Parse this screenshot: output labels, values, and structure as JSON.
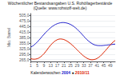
{
  "chart_data": {
    "type": "line",
    "title": "Wöchentlicher Bestandsangaben U.S. Rohöllagerbestände",
    "subtitle": "(Quelle: www.rohstoff-welt.de)",
    "xlabel": "Kalenderwochen",
    "ylabel": "Mio. Barrel",
    "annotations": [
      "●"
    ],
    "legend": "bottom",
    "grid": true,
    "x": [
      1,
      2,
      3,
      4,
      5,
      6,
      7,
      8,
      9,
      10,
      11,
      12,
      13,
      14,
      15,
      16,
      17,
      18,
      19,
      20,
      21,
      22,
      23,
      24,
      25,
      26,
      27,
      28,
      29,
      30,
      31,
      32,
      33,
      34,
      35,
      36,
      37,
      38,
      39,
      40,
      41,
      42,
      43,
      44,
      45,
      46,
      47,
      48,
      49,
      50,
      51,
      52
    ],
    "xlim": [
      1,
      52
    ],
    "xticks": [
      1,
      5,
      9,
      13,
      17,
      21,
      25,
      29,
      33,
      37,
      41,
      45,
      49
    ],
    "ylim": [
      255.0,
      515.0
    ],
    "yticks": [
      {
        "value": 265.0,
        "label": "265,0"
      },
      {
        "value": 295.0,
        "label": "295,0"
      },
      {
        "value": 325.0,
        "label": "325,0"
      },
      {
        "value": 355.0,
        "label": "355,0"
      },
      {
        "value": 385.0,
        "label": "385,0"
      },
      {
        "value": 415.0,
        "label": "415,0"
      },
      {
        "value": 445.0,
        "label": "445,0"
      },
      {
        "value": 475.0,
        "label": "475,0"
      },
      {
        "value": 505.0,
        "label": "505,0"
      }
    ],
    "series": [
      {
        "name": "2004",
        "color": "#2222cc",
        "values": [
          333,
          338,
          344,
          352,
          361,
          371,
          381,
          392,
          402,
          412,
          421,
          430,
          438,
          445,
          451,
          456,
          460,
          463,
          465,
          466,
          466,
          465,
          463,
          460,
          456,
          451,
          445,
          438,
          430,
          421,
          412,
          402,
          392,
          382,
          373,
          365,
          358,
          352,
          347,
          344,
          342,
          341,
          341,
          341,
          342,
          343,
          344,
          345,
          346,
          347,
          348,
          349
        ]
      },
      {
        "name": "2010/11",
        "color": "#dd2200",
        "values": [
          270,
          268,
          267,
          268,
          270,
          274,
          280,
          288,
          297,
          308,
          320,
          332,
          343,
          353,
          361,
          368,
          373,
          376,
          377,
          376,
          374,
          370,
          365,
          359,
          352,
          344,
          336,
          327,
          318,
          309,
          300,
          292,
          284,
          278,
          272,
          268,
          265,
          264,
          265,
          267,
          271,
          277,
          284,
          293,
          303,
          313,
          323,
          334,
          344,
          354,
          362,
          369
        ]
      }
    ]
  }
}
